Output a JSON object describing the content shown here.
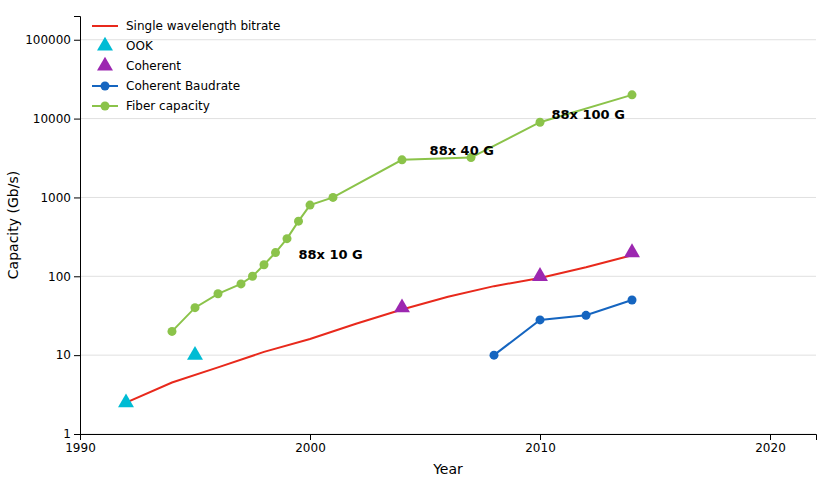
{
  "chart_data": {
    "type": "line",
    "xlabel": "Year",
    "ylabel": "Capacity (Gb/s)",
    "log": "y",
    "grid": "y",
    "legend": "upper left",
    "xlim": [
      1990,
      2022
    ],
    "xticks": [
      1990,
      2000,
      2010,
      2020
    ],
    "ylim": [
      1,
      200000
    ],
    "yticks": [
      1,
      10,
      100,
      1000,
      10000,
      100000
    ],
    "series": [
      {
        "name": "Single wavelength bitrate",
        "type": "line",
        "color": "#e8291c",
        "marker": "none",
        "line_style": "solid",
        "x": [
          1992,
          1994,
          1996,
          1998,
          2000,
          2002,
          2004,
          2006,
          2008,
          2010,
          2012,
          2014
        ],
        "values": [
          2.5,
          4.5,
          7,
          11,
          16,
          25,
          38,
          55,
          75,
          95,
          130,
          185
        ]
      },
      {
        "name": "OOK",
        "type": "scatter",
        "color": "#00bcd4",
        "marker": "triangle",
        "line_style": "none",
        "x": [
          1992,
          1995
        ],
        "values": [
          2.5,
          10
        ]
      },
      {
        "name": "Coherent",
        "type": "scatter",
        "color": "#9c27b0",
        "marker": "triangle",
        "line_style": "none",
        "x": [
          2004,
          2010,
          2014
        ],
        "values": [
          40,
          100,
          200
        ]
      },
      {
        "name": "Coherent Baudrate",
        "type": "line",
        "color": "#1565c0",
        "marker": "circle",
        "line_style": "solid",
        "x": [
          2008,
          2010,
          2012,
          2014
        ],
        "values": [
          10,
          28,
          32,
          50
        ]
      },
      {
        "name": "Fiber capacity",
        "type": "line",
        "color": "#8bc34a",
        "marker": "circle",
        "line_style": "solid",
        "x": [
          1994,
          1995,
          1996,
          1997,
          1997.5,
          1998,
          1998.5,
          1999,
          1999.5,
          2000,
          2001,
          2004,
          2007,
          2010,
          2014
        ],
        "values": [
          20,
          40,
          60,
          80,
          100,
          140,
          200,
          300,
          500,
          800,
          1000,
          3000,
          3200,
          9000,
          20000
        ]
      }
    ],
    "annotations": [
      {
        "text": "88x 10 G",
        "x": 1999.5,
        "y": 165
      },
      {
        "text": "88x 40 G",
        "x": 2005.2,
        "y": 3500
      },
      {
        "text": "88x 100 G",
        "x": 2010.5,
        "y": 10000
      }
    ]
  }
}
